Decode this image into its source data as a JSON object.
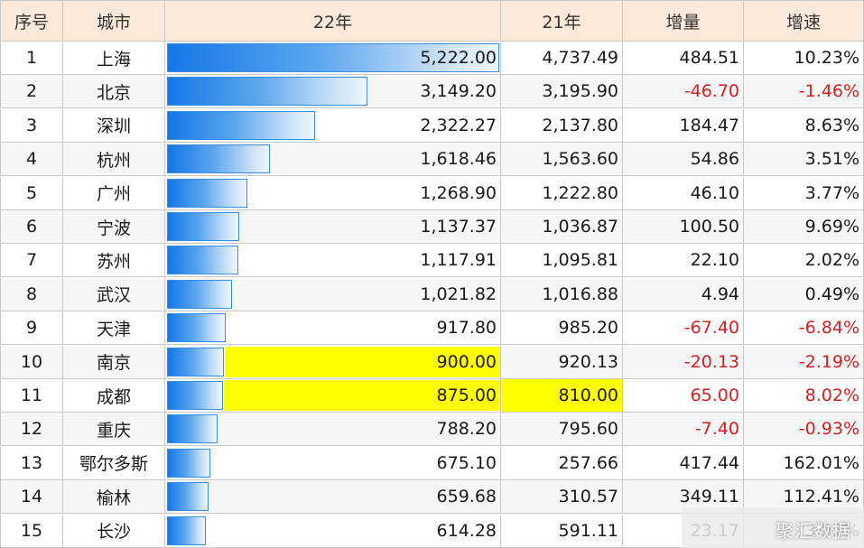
{
  "chart_data": {
    "type": "table",
    "headers": [
      "序号",
      "城市",
      "22年",
      "21年",
      "增量",
      "增速"
    ],
    "rows": [
      {
        "rank": "1",
        "city": "上海",
        "y22": "5,222.00",
        "v22": 5222.0,
        "y21": "4,737.49",
        "inc": "484.51",
        "rate": "10.23%",
        "neg": false,
        "hl22": false,
        "hl21": false
      },
      {
        "rank": "2",
        "city": "北京",
        "y22": "3,149.20",
        "v22": 3149.2,
        "y21": "3,195.90",
        "inc": "-46.70",
        "rate": "-1.46%",
        "neg": true,
        "hl22": false,
        "hl21": false
      },
      {
        "rank": "3",
        "city": "深圳",
        "y22": "2,322.27",
        "v22": 2322.27,
        "y21": "2,137.80",
        "inc": "184.47",
        "rate": "8.63%",
        "neg": false,
        "hl22": false,
        "hl21": false
      },
      {
        "rank": "4",
        "city": "杭州",
        "y22": "1,618.46",
        "v22": 1618.46,
        "y21": "1,563.60",
        "inc": "54.86",
        "rate": "3.51%",
        "neg": false,
        "hl22": false,
        "hl21": false
      },
      {
        "rank": "5",
        "city": "广州",
        "y22": "1,268.90",
        "v22": 1268.9,
        "y21": "1,222.80",
        "inc": "46.10",
        "rate": "3.77%",
        "neg": false,
        "hl22": false,
        "hl21": false
      },
      {
        "rank": "6",
        "city": "宁波",
        "y22": "1,137.37",
        "v22": 1137.37,
        "y21": "1,036.87",
        "inc": "100.50",
        "rate": "9.69%",
        "neg": false,
        "hl22": false,
        "hl21": false
      },
      {
        "rank": "7",
        "city": "苏州",
        "y22": "1,117.91",
        "v22": 1117.91,
        "y21": "1,095.81",
        "inc": "22.10",
        "rate": "2.02%",
        "neg": false,
        "hl22": false,
        "hl21": false
      },
      {
        "rank": "8",
        "city": "武汉",
        "y22": "1,021.82",
        "v22": 1021.82,
        "y21": "1,016.88",
        "inc": "4.94",
        "rate": "0.49%",
        "neg": false,
        "hl22": false,
        "hl21": false
      },
      {
        "rank": "9",
        "city": "天津",
        "y22": "917.80",
        "v22": 917.8,
        "y21": "985.20",
        "inc": "-67.40",
        "rate": "-6.84%",
        "neg": true,
        "hl22": false,
        "hl21": false
      },
      {
        "rank": "10",
        "city": "南京",
        "y22": "900.00",
        "v22": 900.0,
        "y21": "920.13",
        "inc": "-20.13",
        "rate": "-2.19%",
        "neg": true,
        "hl22": true,
        "hl21": false
      },
      {
        "rank": "11",
        "city": "成都",
        "y22": "875.00",
        "v22": 875.0,
        "y21": "810.00",
        "inc": "65.00",
        "rate": "8.02%",
        "neg": true,
        "hl22": true,
        "hl21": true
      },
      {
        "rank": "12",
        "city": "重庆",
        "y22": "788.20",
        "v22": 788.2,
        "y21": "795.60",
        "inc": "-7.40",
        "rate": "-0.93%",
        "neg": true,
        "hl22": false,
        "hl21": false
      },
      {
        "rank": "13",
        "city": "鄂尔多斯",
        "y22": "675.10",
        "v22": 675.1,
        "y21": "257.66",
        "inc": "417.44",
        "rate": "162.01%",
        "neg": false,
        "hl22": false,
        "hl21": false
      },
      {
        "rank": "14",
        "city": "榆林",
        "y22": "659.68",
        "v22": 659.68,
        "y21": "310.57",
        "inc": "349.11",
        "rate": "112.41%",
        "neg": false,
        "hl22": false,
        "hl21": false
      },
      {
        "rank": "15",
        "city": "长沙",
        "y22": "614.28",
        "v22": 614.28,
        "y21": "591.11",
        "inc": "23.17",
        "rate": "3.92%",
        "neg": false,
        "hl22": false,
        "hl21": false
      }
    ],
    "bar_max": 5222.0,
    "colors": {
      "negative": "#d42020",
      "highlight": "#ffff00",
      "header": "#fde9d9",
      "bar": "#1477e6"
    }
  },
  "watermark": "聚汇数据"
}
